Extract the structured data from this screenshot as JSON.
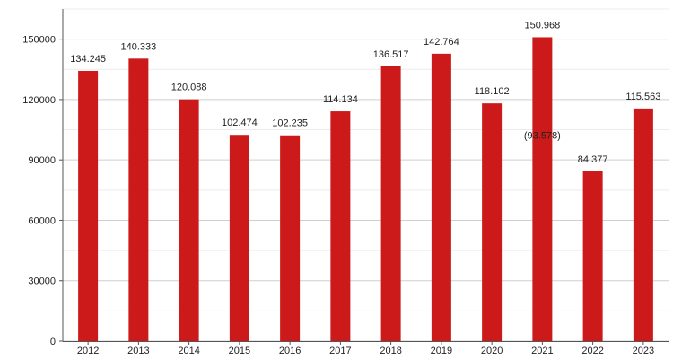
{
  "chart_data": {
    "type": "bar",
    "title": "",
    "xlabel": "",
    "ylabel": "",
    "categories": [
      "2012",
      "2013",
      "2014",
      "2015",
      "2016",
      "2017",
      "2018",
      "2019",
      "2020",
      "2021",
      "2022",
      "2023"
    ],
    "values": [
      134245,
      140333,
      120088,
      102474,
      102235,
      114134,
      136517,
      142764,
      118102,
      150968,
      84377,
      115563
    ],
    "value_labels": [
      "134.245",
      "140.333",
      "120.088",
      "102.474",
      "102.235",
      "114.134",
      "136.517",
      "142.764",
      "118.102",
      "150.968",
      "84.377",
      "115.563"
    ],
    "ylim": [
      0,
      165000
    ],
    "yticks": [
      0,
      30000,
      60000,
      90000,
      120000,
      150000
    ],
    "ytick_labels": [
      "0",
      "30000",
      "60000",
      "90000",
      "120000",
      "150000"
    ],
    "grid": true,
    "bar_color": "#cc1a1a",
    "annotations": [
      {
        "text": "(93.578)",
        "category": "2021",
        "y": 100500
      }
    ]
  }
}
